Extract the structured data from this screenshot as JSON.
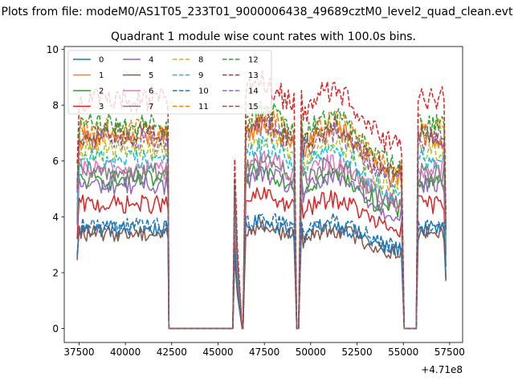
{
  "chart_data": {
    "type": "line",
    "suptitle": "Plots from file: modeM0/AS1T05_233T01_9000006438_49689cztM0_level2_quad_clean.evt",
    "title": "Quadrant 1 module wise count rates with 100.0s bins.",
    "xlabel": "",
    "ylabel": "",
    "x_offset_label": "+4.71e8",
    "xlim": [
      36700,
      58200
    ],
    "ylim": [
      -0.5,
      10.1
    ],
    "x_ticks": [
      37500,
      40000,
      42500,
      45000,
      47500,
      50000,
      52500,
      55000,
      57500
    ],
    "x_tick_labels": [
      "37500",
      "40000",
      "42500",
      "45000",
      "47500",
      "50000",
      "52500",
      "55000",
      "57500"
    ],
    "y_ticks": [
      0,
      2,
      4,
      6,
      8,
      10
    ],
    "y_tick_labels": [
      "0",
      "2",
      "4",
      "6",
      "8",
      "10"
    ],
    "legend_position": "upper-left",
    "legend_columns": 4,
    "bin_seconds": 100,
    "segments": [
      {
        "start": 37400,
        "end": 42300,
        "label": "segment-1"
      },
      {
        "start": 42300,
        "end": 45900,
        "label": "gap-zero"
      },
      {
        "start": 45900,
        "end": 46300,
        "label": "spike"
      },
      {
        "start": 46500,
        "end": 49100,
        "label": "segment-2"
      },
      {
        "start": 49500,
        "end": 54900,
        "label": "segment-3"
      },
      {
        "start": 55800,
        "end": 57300,
        "label": "segment-4"
      }
    ],
    "series": [
      {
        "name": "0",
        "color": "#1f77b4",
        "dash": "solid",
        "level": 3.55
      },
      {
        "name": "1",
        "color": "#ff7f0e",
        "dash": "solid",
        "level": 6.8
      },
      {
        "name": "2",
        "color": "#2ca02c",
        "dash": "solid",
        "level": 5.3
      },
      {
        "name": "3",
        "color": "#d62728",
        "dash": "solid",
        "level": 4.45
      },
      {
        "name": "4",
        "color": "#9467bd",
        "dash": "solid",
        "level": 5.15
      },
      {
        "name": "5",
        "color": "#8c564b",
        "dash": "solid",
        "level": 3.4
      },
      {
        "name": "6",
        "color": "#e377c2",
        "dash": "solid",
        "level": 5.7
      },
      {
        "name": "7",
        "color": "#7f7f7f",
        "dash": "solid",
        "level": 5.6
      },
      {
        "name": "8",
        "color": "#bcbd22",
        "dash": "dashed",
        "level": 6.4
      },
      {
        "name": "9",
        "color": "#17becf",
        "dash": "dashed",
        "level": 6.1
      },
      {
        "name": "10",
        "color": "#1f77b4",
        "dash": "dashed",
        "level": 3.7
      },
      {
        "name": "11",
        "color": "#ff7f0e",
        "dash": "dashed",
        "level": 7.1
      },
      {
        "name": "12",
        "color": "#2ca02c",
        "dash": "dashed",
        "level": 7.3
      },
      {
        "name": "13",
        "color": "#d62728",
        "dash": "dashed",
        "level": 8.2
      },
      {
        "name": "14",
        "color": "#9467bd",
        "dash": "dashed",
        "level": 6.75
      },
      {
        "name": "15",
        "color": "#8c564b",
        "dash": "dashed",
        "level": 6.95
      }
    ]
  }
}
